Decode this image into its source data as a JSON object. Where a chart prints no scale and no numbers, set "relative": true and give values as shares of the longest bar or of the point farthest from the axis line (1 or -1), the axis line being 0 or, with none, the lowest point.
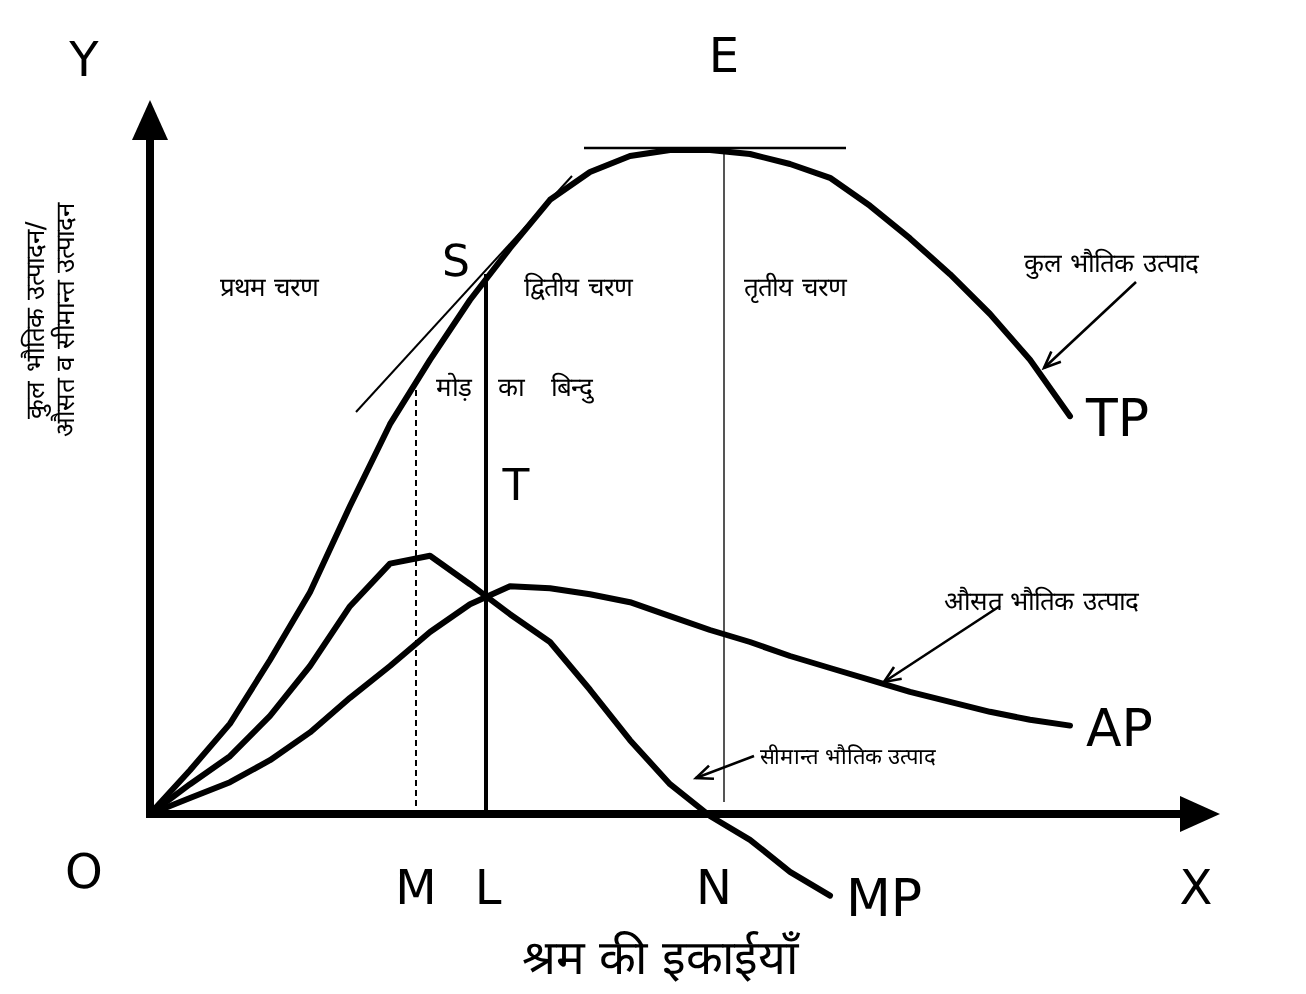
{
  "chart_data": {
    "type": "line",
    "relative": true,
    "grid": false,
    "xlabel": "श्रम की इकाईयाँ",
    "ylabel": "कुल भौतिक उत्पादन/ औसत व सीमान्त उत्पादन",
    "categories": [
      null,
      null,
      null,
      null,
      null,
      null,
      null,
      null,
      null,
      null,
      null,
      null,
      null,
      null,
      null,
      null,
      null,
      null,
      null,
      null,
      null,
      null,
      null,
      null,
      null
    ],
    "series": [
      {
        "name": "TP",
        "color": "#000000",
        "values": [
          0,
          0.066,
          0.136,
          0.232,
          0.334,
          0.464,
          0.587,
          0.684,
          0.774,
          0.852,
          0.925,
          0.967,
          0.991,
          1,
          1,
          0.994,
          0.979,
          0.958,
          0.916,
          0.867,
          0.813,
          0.753,
          0.684,
          0.599,
          null
        ]
      },
      {
        "name": "AP",
        "color": "#000000",
        "values": [
          0,
          0.024,
          0.048,
          0.081,
          0.123,
          0.175,
          0.223,
          0.274,
          0.316,
          0.343,
          0.34,
          0.331,
          0.319,
          0.298,
          0.277,
          0.259,
          0.238,
          0.22,
          0.202,
          0.184,
          0.169,
          0.154,
          0.142,
          0.133,
          null
        ]
      },
      {
        "name": "MP",
        "color": "#000000",
        "values": [
          0,
          0.045,
          0.087,
          0.148,
          0.223,
          0.313,
          0.377,
          0.389,
          0.346,
          0.301,
          0.259,
          0.187,
          0.111,
          0.045,
          -0.003,
          -0.039,
          -0.087,
          -0.123,
          null,
          null,
          null,
          null,
          null,
          null,
          null
        ]
      }
    ],
    "annotations": [
      "Y",
      "X",
      "O",
      "M",
      "L",
      "N",
      "E",
      "S",
      "T",
      "प्रथम चरण",
      "द्वितीय चरण",
      "तृतीय चरण",
      "मोड़ का बिन्दु",
      "कुल भौतिक उत्पाद",
      "औसत भौतिक उत्पाद",
      "सीमान्त भौतिक उत्पाद"
    ]
  }
}
